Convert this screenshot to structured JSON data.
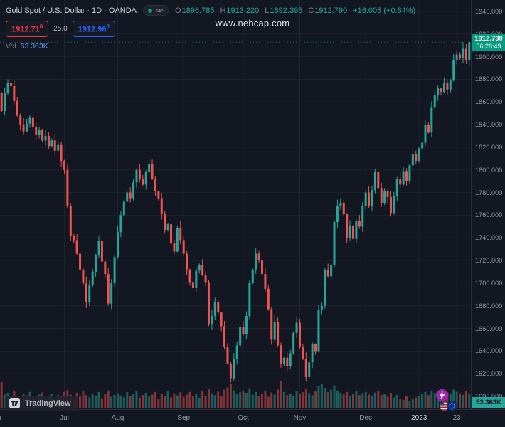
{
  "header": {
    "symbol_title": "Gold Spot / U.S. Dollar · 1D · OANDA",
    "ohlc": {
      "o_label": "O",
      "o_value": "1896.785",
      "h_label": "H",
      "h_value": "1913.220",
      "l_label": "L",
      "l_value": "1892.395",
      "c_label": "C",
      "c_value": "1912.790",
      "change": "+16.005 (+0.84%)"
    },
    "quote": {
      "bid": "1912.71",
      "bid_sup": "0",
      "spread": "25.0",
      "ask": "1912.96",
      "ask_sup": "0"
    },
    "volume_row": {
      "label": "Vol",
      "value": "53.363K"
    }
  },
  "watermark": "www.nehcap.com",
  "price_axis_badges": {
    "last_price": "1912.790",
    "countdown": "06:28:49",
    "volume": "53.363K"
  },
  "footer": {
    "tradingview_label": "TradingView"
  },
  "colors": {
    "background": "#131722",
    "up": "#26a69a",
    "down": "#ef5350",
    "last_price_badge": "#089981",
    "bid_red": "#f23645",
    "ask_blue": "#2962ff",
    "volume_badge": "#26a69a",
    "grid": "#1e222d",
    "axis_text": "#9598a1"
  },
  "chart_data": {
    "type": "candlestick",
    "title": "Gold Spot / U.S. Dollar",
    "interval": "1D",
    "source": "OANDA",
    "ylim": [
      1593,
      1949
    ],
    "y_ticks": [
      1940,
      1920,
      1900,
      1880,
      1860,
      1840,
      1820,
      1800,
      1780,
      1760,
      1740,
      1720,
      1700,
      1680,
      1660,
      1640,
      1620,
      1600
    ],
    "x_ticks": [
      {
        "label": "Jun",
        "i": -2
      },
      {
        "label": "Jul",
        "i": 20
      },
      {
        "label": "Aug",
        "i": 37
      },
      {
        "label": "Sep",
        "i": 58
      },
      {
        "label": "Oct",
        "i": 77
      },
      {
        "label": "Nov",
        "i": 95
      },
      {
        "label": "Dec",
        "i": 116
      },
      {
        "label": "2023",
        "i": 133,
        "major": true
      },
      {
        "label": "23",
        "i": 145
      }
    ],
    "first_open": 1868,
    "closes": [
      1852,
      1868,
      1877,
      1874,
      1861,
      1848,
      1840,
      1834,
      1841,
      1846,
      1838,
      1831,
      1835,
      1826,
      1830,
      1821,
      1826,
      1817,
      1822,
      1808,
      1800,
      1768,
      1742,
      1738,
      1726,
      1712,
      1700,
      1683,
      1698,
      1710,
      1725,
      1737,
      1719,
      1708,
      1682,
      1700,
      1723,
      1745,
      1760,
      1772,
      1780,
      1775,
      1789,
      1800,
      1792,
      1787,
      1798,
      1805,
      1792,
      1781,
      1775,
      1761,
      1747,
      1752,
      1735,
      1728,
      1749,
      1738,
      1726,
      1712,
      1701,
      1696,
      1711,
      1716,
      1707,
      1701,
      1664,
      1671,
      1683,
      1674,
      1662,
      1644,
      1629,
      1616,
      1633,
      1645,
      1661,
      1655,
      1671,
      1700,
      1712,
      1726,
      1720,
      1708,
      1695,
      1677,
      1650,
      1666,
      1645,
      1629,
      1634,
      1627,
      1638,
      1656,
      1665,
      1644,
      1633,
      1617,
      1630,
      1646,
      1640,
      1676,
      1680,
      1712,
      1706,
      1716,
      1754,
      1768,
      1771,
      1761,
      1740,
      1751,
      1739,
      1755,
      1750,
      1768,
      1780,
      1768,
      1782,
      1798,
      1784,
      1771,
      1781,
      1776,
      1762,
      1777,
      1792,
      1787,
      1799,
      1790,
      1804,
      1814,
      1808,
      1819,
      1824,
      1840,
      1833,
      1855,
      1866,
      1872,
      1869,
      1877,
      1871,
      1879,
      1897,
      1902,
      1899,
      1907,
      1896.8,
      1912.79
    ],
    "volumes_k": [
      92,
      48,
      55,
      39,
      61,
      44,
      37,
      52,
      46,
      58,
      41,
      35,
      49,
      56,
      38,
      44,
      51,
      36,
      47,
      42,
      58,
      64,
      49,
      37,
      55,
      43,
      61,
      47,
      39,
      52,
      45,
      58,
      36,
      50,
      63,
      41,
      48,
      54,
      46,
      39,
      57,
      44,
      52,
      61,
      38,
      47,
      55,
      42,
      49,
      58,
      35,
      51,
      44,
      62,
      39,
      53,
      46,
      57,
      41,
      49,
      58,
      43,
      52,
      38,
      61,
      45,
      67,
      54,
      47,
      59,
      42,
      66,
      73,
      88,
      64,
      51,
      57,
      62,
      55,
      71,
      48,
      58,
      44,
      52,
      63,
      41,
      56,
      49,
      66,
      95,
      58,
      47,
      53,
      44,
      61,
      50,
      57,
      68,
      54,
      47,
      62,
      78,
      85,
      72,
      58,
      66,
      81,
      63,
      55,
      49,
      58,
      44,
      52,
      61,
      47,
      54,
      58,
      49,
      44,
      56,
      63,
      47,
      52,
      41,
      55,
      38,
      48,
      35,
      30,
      42,
      28,
      33,
      39,
      45,
      52,
      58,
      47,
      61,
      55,
      49,
      63,
      44,
      57,
      51,
      66,
      59,
      54,
      48,
      62,
      53.363
    ],
    "last_candle": {
      "o": 1896.785,
      "h": 1913.22,
      "l": 1892.395,
      "c": 1912.79
    },
    "last_volume_k": 53.363,
    "up_color": "#26a69a",
    "down_color": "#ef5350"
  }
}
